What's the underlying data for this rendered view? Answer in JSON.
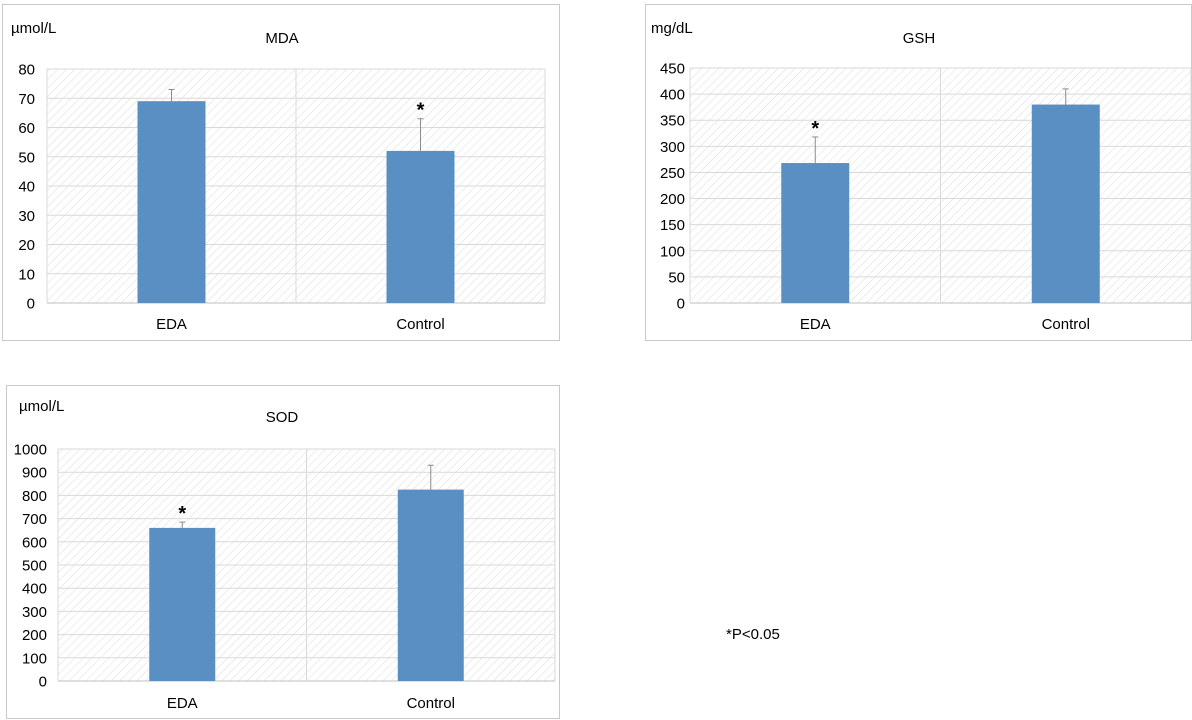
{
  "footnote": "*P<0.05",
  "colors": {
    "bar": "#5a8fc4",
    "error_bar": "#8c8c8c",
    "grid": "#d9d9d9",
    "hatch": "#dcdcdc",
    "panel_border": "#c9c9c9"
  },
  "chart_data": [
    {
      "type": "bar",
      "title": "MDA",
      "unit": "µmol/L",
      "categories": [
        "EDA",
        "Control"
      ],
      "values": [
        69,
        52
      ],
      "error": [
        4,
        11
      ],
      "significance": [
        "",
        "*"
      ],
      "ylim": [
        0,
        80
      ],
      "yticks": [
        0,
        10,
        20,
        30,
        40,
        50,
        60,
        70,
        80
      ],
      "grid": true
    },
    {
      "type": "bar",
      "title": "GSH",
      "unit": "mg/dL",
      "categories": [
        "EDA",
        "Control"
      ],
      "values": [
        268,
        380
      ],
      "error": [
        50,
        30
      ],
      "significance": [
        "*",
        ""
      ],
      "ylim": [
        0,
        450
      ],
      "yticks": [
        0,
        50,
        100,
        150,
        200,
        250,
        300,
        350,
        400,
        450
      ],
      "grid": true
    },
    {
      "type": "bar",
      "title": "SOD",
      "unit": "µmol/L",
      "categories": [
        "EDA",
        "Control"
      ],
      "values": [
        660,
        825
      ],
      "error": [
        25,
        105
      ],
      "significance": [
        "*",
        ""
      ],
      "ylim": [
        0,
        1000
      ],
      "yticks": [
        0,
        100,
        200,
        300,
        400,
        500,
        600,
        700,
        800,
        900,
        1000
      ],
      "grid": true
    }
  ]
}
